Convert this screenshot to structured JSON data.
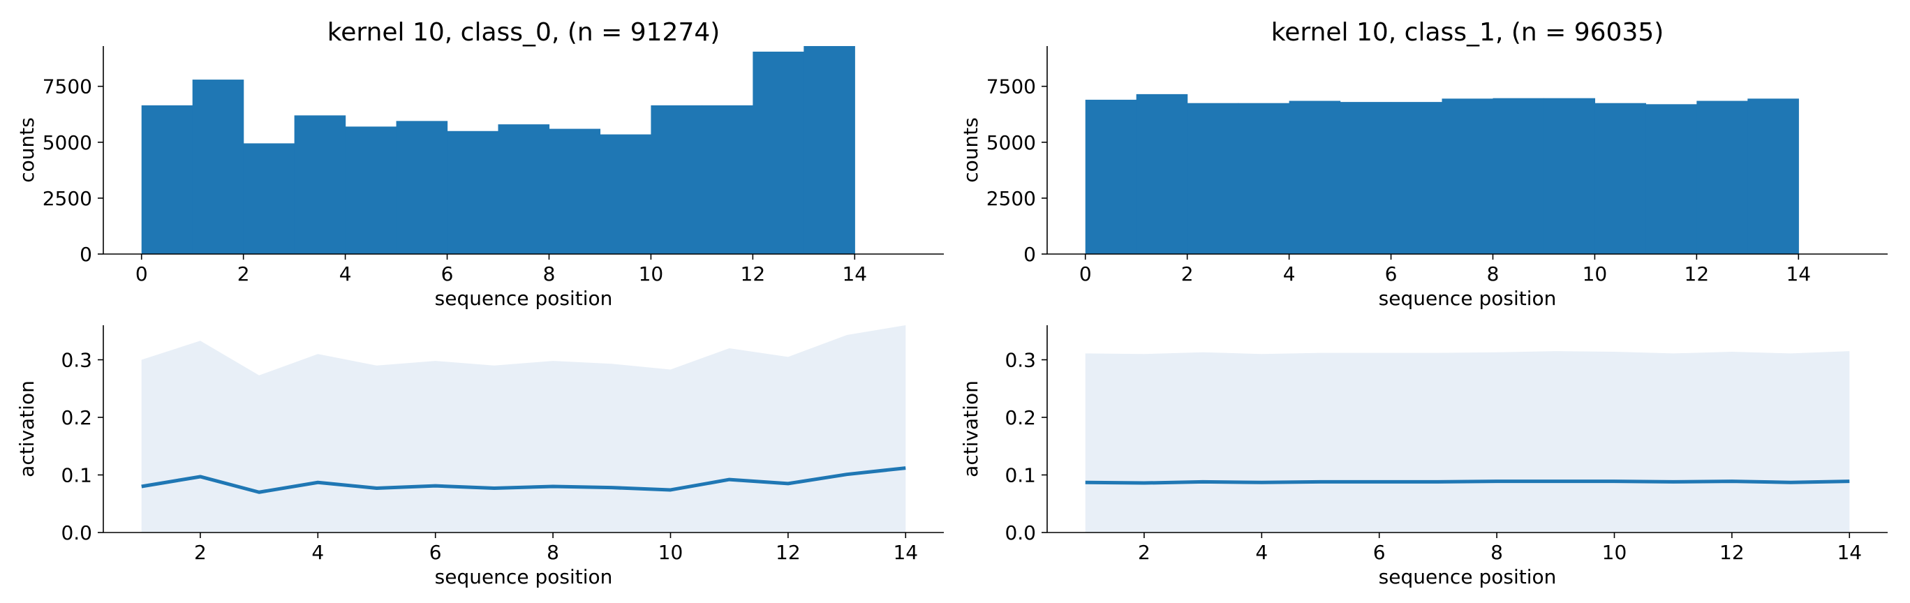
{
  "chart_data": [
    {
      "type": "bar",
      "title": "kernel 10, class_0, (n = 91274)",
      "xlabel": "sequence position",
      "ylabel": "counts",
      "bin_edges": [
        0,
        1,
        2,
        3,
        4,
        5,
        6,
        7,
        8,
        9,
        10,
        11,
        12,
        13,
        14
      ],
      "values": [
        6650,
        7800,
        4950,
        6200,
        5700,
        5950,
        5500,
        5800,
        5600,
        5350,
        6650,
        6650,
        9050,
        9300
      ],
      "xlim": [
        -0.75,
        15.75
      ],
      "ylim": [
        0,
        9300
      ],
      "xticks": [
        0,
        2,
        4,
        6,
        8,
        10,
        12,
        14
      ],
      "yticks": [
        0,
        2500,
        5000,
        7500
      ],
      "color": "#1f77b4",
      "grid": false
    },
    {
      "type": "bar",
      "title": "kernel 10, class_1, (n = 96035)",
      "xlabel": "sequence position",
      "ylabel": "counts",
      "bin_edges": [
        0,
        1,
        2,
        3,
        4,
        5,
        6,
        7,
        8,
        9,
        10,
        11,
        12,
        13,
        14
      ],
      "values": [
        6900,
        7150,
        6750,
        6750,
        6850,
        6800,
        6800,
        6950,
        6970,
        6970,
        6750,
        6700,
        6850,
        6950
      ],
      "xlim": [
        -0.75,
        15.75
      ],
      "ylim": [
        0,
        9300
      ],
      "xticks": [
        0,
        2,
        4,
        6,
        8,
        10,
        12,
        14
      ],
      "yticks": [
        0,
        2500,
        5000,
        7500
      ],
      "color": "#1f77b4",
      "grid": false
    },
    {
      "type": "area",
      "xlabel": "sequence position",
      "ylabel": "activation",
      "x": [
        1,
        2,
        3,
        4,
        5,
        6,
        7,
        8,
        9,
        10,
        11,
        12,
        13,
        14
      ],
      "mean": [
        0.08,
        0.097,
        0.07,
        0.087,
        0.077,
        0.081,
        0.077,
        0.08,
        0.078,
        0.074,
        0.092,
        0.085,
        0.101,
        0.112
      ],
      "upper": [
        0.3,
        0.333,
        0.273,
        0.31,
        0.29,
        0.298,
        0.29,
        0.298,
        0.293,
        0.283,
        0.32,
        0.305,
        0.343,
        0.36
      ],
      "lower": [
        0,
        0,
        0,
        0,
        0,
        0,
        0,
        0,
        0,
        0,
        0,
        0,
        0,
        0
      ],
      "xlim": [
        0.35,
        14.65
      ],
      "ylim": [
        0,
        0.36
      ],
      "xticks": [
        2,
        4,
        6,
        8,
        10,
        12,
        14
      ],
      "yticks": [
        "0.0",
        "0.1",
        "0.2",
        "0.3"
      ],
      "line_color": "#1f77b4",
      "fill_color": "#e8eff7",
      "grid": false
    },
    {
      "type": "area",
      "xlabel": "sequence position",
      "ylabel": "activation",
      "x": [
        1,
        2,
        3,
        4,
        5,
        6,
        7,
        8,
        9,
        10,
        11,
        12,
        13,
        14
      ],
      "mean": [
        0.087,
        0.086,
        0.088,
        0.087,
        0.088,
        0.088,
        0.088,
        0.089,
        0.089,
        0.089,
        0.088,
        0.089,
        0.087,
        0.089
      ],
      "upper": [
        0.311,
        0.31,
        0.313,
        0.31,
        0.312,
        0.312,
        0.312,
        0.313,
        0.315,
        0.314,
        0.311,
        0.314,
        0.311,
        0.315
      ],
      "lower": [
        0,
        0,
        0,
        0,
        0,
        0,
        0,
        0,
        0,
        0,
        0,
        0,
        0,
        0
      ],
      "xlim": [
        0.35,
        14.65
      ],
      "ylim": [
        0,
        0.36
      ],
      "xticks": [
        2,
        4,
        6,
        8,
        10,
        12,
        14
      ],
      "yticks": [
        "0.0",
        "0.1",
        "0.2",
        "0.3"
      ],
      "line_color": "#1f77b4",
      "fill_color": "#e8eff7",
      "grid": false
    }
  ]
}
